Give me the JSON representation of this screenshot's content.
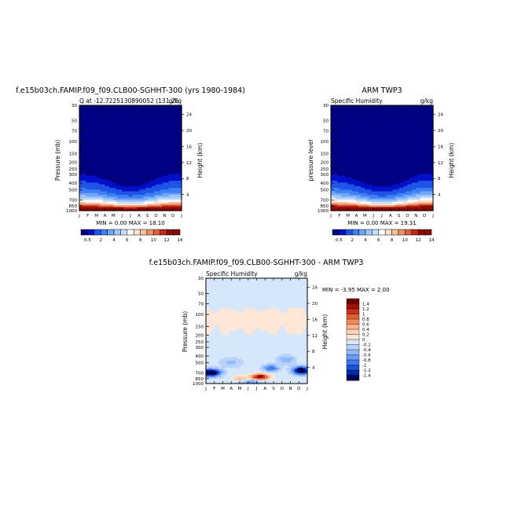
{
  "panel1": {
    "title": "f.e15b03ch.FAMIP.f09_f09.CLB00-SGHHT-300 (yrs 1980-1984)",
    "subtitle_left": "Q at -12.7225130890052 (131.25",
    "subtitle_right": "g/kg",
    "ylabel": "Pressure (mb)",
    "ylabel_right": "Height (km)",
    "min_max": "MIN =    0.00 MAX =   18.10"
  },
  "panel2": {
    "title": "ARM TWP3",
    "subtitle_left": "Specific Humidity",
    "subtitle_right": "g/kg",
    "ylabel": "pressure level",
    "ylabel_right": "Height (km)",
    "min_max": "MIN =    0.00 MAX =   19.31"
  },
  "panel3": {
    "title": "f.e15b03ch.FAMIP.f09_f09.CLB00-SGHHT-300 - ARM TWP3",
    "subtitle_left": "Specific Humidity",
    "subtitle_right": "g/kg",
    "ylabel": "Pressure (mb)",
    "ylabel_right": "Height (km)",
    "min_max": "MIN =   -3.95 MAX =    2.00"
  },
  "colors": {
    "abs_scale": [
      "#000080",
      "#0010c8",
      "#1f55e6",
      "#3f7ff4",
      "#6fa6f8",
      "#9fc6fa",
      "#c8dffb",
      "#ffffff",
      "#fce3d0",
      "#f8bf9c",
      "#f09068",
      "#e0603c",
      "#c02818",
      "#8c0a06"
    ],
    "diff_scale": [
      "#00005a",
      "#002aa8",
      "#1a52d8",
      "#3f78f0",
      "#6a9cf8",
      "#93b8fa",
      "#b8d2fb",
      "#d6e6fb",
      "#fde6d6",
      "#fcd2b6",
      "#f8b48a",
      "#f08a5c",
      "#e06036",
      "#c8321c",
      "#a01008",
      "#700000"
    ]
  },
  "chart_data": [
    {
      "type": "heatmap",
      "title": "f.e15b03ch.FAMIP.f09_f09.CLB00-SGHHT-300 (yrs 1980-1984)",
      "variable": "Q",
      "units": "g/kg",
      "x_tick_labels": [
        "J",
        "F",
        "M",
        "A",
        "M",
        "J",
        "J",
        "A",
        "S",
        "O",
        "N",
        "D",
        "J"
      ],
      "y_tick_labels": [
        "30",
        "50",
        "70",
        "100",
        "150",
        "200",
        "250",
        "300",
        "400",
        "500",
        "700",
        "850",
        "1000"
      ],
      "y_ticks": [
        30,
        50,
        70,
        100,
        150,
        200,
        250,
        300,
        400,
        500,
        700,
        850,
        1000
      ],
      "y_right_tick_labels": [
        "4",
        "8",
        "12",
        "16",
        "20",
        "24"
      ],
      "y_right_ticks": [
        4,
        8,
        12,
        16,
        20,
        24
      ],
      "ylim": [
        1000,
        30
      ],
      "y_scale": "log",
      "colorbar_labels": [
        "0.5",
        "2",
        "4",
        "6",
        "8",
        "10",
        "12",
        "14"
      ],
      "colorbar_levels": [
        0.5,
        1,
        2,
        3,
        4,
        5,
        6,
        7,
        8,
        9,
        10,
        11,
        12,
        13,
        14
      ],
      "min": 0.0,
      "max": 18.1,
      "surface_value": 17.5,
      "months": [
        1,
        2,
        3,
        4,
        5,
        6,
        7,
        8,
        9,
        10,
        11,
        12,
        13
      ],
      "scale_height_km": [
        2.6,
        2.5,
        2.4,
        2.2,
        1.95,
        1.75,
        1.7,
        1.75,
        1.95,
        2.2,
        2.45,
        2.6,
        2.6
      ]
    },
    {
      "type": "heatmap",
      "title": "ARM TWP3",
      "variable": "Specific Humidity",
      "units": "g/kg",
      "x_tick_labels": [
        "J",
        "F",
        "M",
        "A",
        "M",
        "J",
        "J",
        "A",
        "S",
        "O",
        "N",
        "D",
        "J"
      ],
      "y_tick_labels": [
        "30",
        "50",
        "70",
        "100",
        "150",
        "200",
        "250",
        "300",
        "400",
        "500",
        "700",
        "850",
        "1000"
      ],
      "y_ticks": [
        30,
        50,
        70,
        100,
        150,
        200,
        250,
        300,
        400,
        500,
        700,
        850,
        1000
      ],
      "y_right_tick_labels": [
        "4",
        "8",
        "12",
        "16",
        "20",
        "24"
      ],
      "y_right_ticks": [
        4,
        8,
        12,
        16,
        20,
        24
      ],
      "ylim": [
        1000,
        30
      ],
      "y_scale": "log",
      "colorbar_labels": [
        "0.5",
        "2",
        "4",
        "6",
        "8",
        "10",
        "12",
        "14"
      ],
      "colorbar_levels": [
        0.5,
        1,
        2,
        3,
        4,
        5,
        6,
        7,
        8,
        9,
        10,
        11,
        12,
        13,
        14
      ],
      "min": 0.0,
      "max": 19.31,
      "surface_value": 18.5,
      "months": [
        1,
        2,
        3,
        4,
        5,
        6,
        7,
        8,
        9,
        10,
        11,
        12,
        13
      ],
      "scale_height_km": [
        2.6,
        2.45,
        2.35,
        2.15,
        1.9,
        1.7,
        1.65,
        1.7,
        1.9,
        2.15,
        2.45,
        2.6,
        2.6
      ]
    },
    {
      "type": "heatmap",
      "title": "f.e15b03ch.FAMIP.f09_f09.CLB00-SGHHT-300 - ARM TWP3",
      "variable": "Specific Humidity",
      "units": "g/kg",
      "x_tick_labels": [
        "J",
        "F",
        "M",
        "A",
        "M",
        "J",
        "J",
        "A",
        "S",
        "O",
        "N",
        "D",
        "J"
      ],
      "y_tick_labels": [
        "30",
        "50",
        "70",
        "100",
        "150",
        "200",
        "250",
        "300",
        "400",
        "500",
        "700",
        "850",
        "1000"
      ],
      "y_ticks": [
        30,
        50,
        70,
        100,
        150,
        200,
        250,
        300,
        400,
        500,
        700,
        850,
        1000
      ],
      "y_right_tick_labels": [
        "4",
        "8",
        "12",
        "16",
        "20",
        "24"
      ],
      "y_right_ticks": [
        4,
        8,
        12,
        16,
        20,
        24
      ],
      "ylim": [
        1000,
        30
      ],
      "y_scale": "log",
      "colorbar_labels": [
        "1.4",
        "1.2",
        "1",
        "0.8",
        "0.6",
        "0.4",
        "0.2",
        "0",
        "-0.2",
        "-0.4",
        "-0.6",
        "-0.8",
        "-1",
        "-1.2",
        "-1.4"
      ],
      "colorbar_levels": [
        -1.4,
        -1.2,
        -1,
        -0.8,
        -0.6,
        -0.4,
        -0.2,
        0,
        0.2,
        0.4,
        0.6,
        0.8,
        1,
        1.2,
        1.4
      ],
      "min": -3.95,
      "max": 2.0,
      "background_value": -0.1,
      "upper_positive_region": {
        "value": 0.1,
        "p_top": 80,
        "p_bottom": 200
      },
      "features": [
        {
          "month": 1.5,
          "p": 700,
          "value": -2.0,
          "sx": 1.2,
          "sp": 0.12
        },
        {
          "month": 12.3,
          "p": 650,
          "value": -1.8,
          "sx": 1.0,
          "sp": 0.13
        },
        {
          "month": 7.4,
          "p": 800,
          "value": 1.6,
          "sx": 1.1,
          "sp": 0.1
        },
        {
          "month": 5.0,
          "p": 850,
          "value": 0.6,
          "sx": 0.8,
          "sp": 0.08
        },
        {
          "month": 8.7,
          "p": 600,
          "value": -0.9,
          "sx": 0.9,
          "sp": 0.12
        },
        {
          "month": 4.0,
          "p": 500,
          "value": -0.4,
          "sx": 1.2,
          "sp": 0.15
        },
        {
          "month": 10.5,
          "p": 450,
          "value": -0.5,
          "sx": 1.0,
          "sp": 0.15
        },
        {
          "month": 6.5,
          "p": 950,
          "value": -0.8,
          "sx": 1.5,
          "sp": 0.05
        }
      ]
    }
  ]
}
